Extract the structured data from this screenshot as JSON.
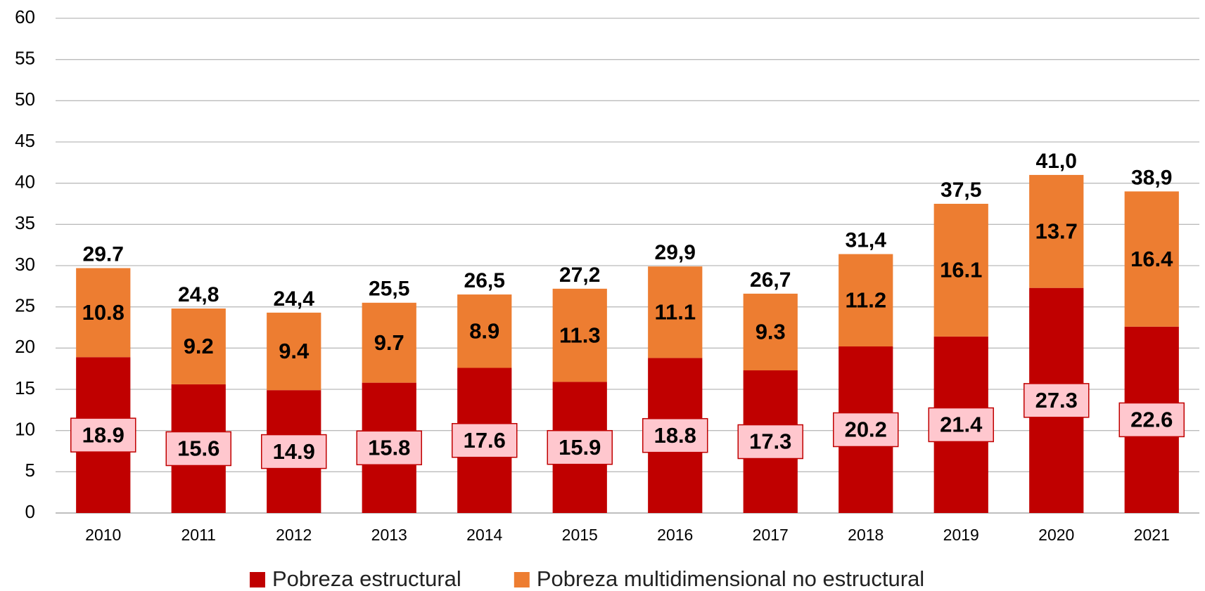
{
  "chart_data": {
    "type": "stacked_bar",
    "categories": [
      "2010",
      "2011",
      "2012",
      "2013",
      "2014",
      "2015",
      "2016",
      "2017",
      "2018",
      "2019",
      "2020",
      "2021"
    ],
    "series": [
      {
        "name": "Pobreza estructural",
        "color": "#c00000",
        "values": [
          18.9,
          15.6,
          14.9,
          15.8,
          17.6,
          15.9,
          18.8,
          17.3,
          20.2,
          21.4,
          27.3,
          22.6
        ]
      },
      {
        "name": "Pobreza multidimensional no estructural",
        "color": "#ed7d31",
        "values": [
          10.8,
          9.2,
          9.4,
          9.7,
          8.9,
          11.3,
          11.1,
          9.3,
          11.2,
          16.1,
          13.7,
          16.4
        ]
      }
    ],
    "total_labels": [
      "29.7",
      "24,8",
      "24,4",
      "25,5",
      "26,5",
      "27,2",
      "29,9",
      "26,7",
      "31,4",
      "37,5",
      "41,0",
      "38,9"
    ],
    "ylim": [
      0,
      60
    ],
    "yticks": [
      0,
      5,
      10,
      15,
      20,
      25,
      30,
      35,
      40,
      45,
      50,
      55,
      60
    ],
    "grid": true,
    "legend": "bottom"
  }
}
